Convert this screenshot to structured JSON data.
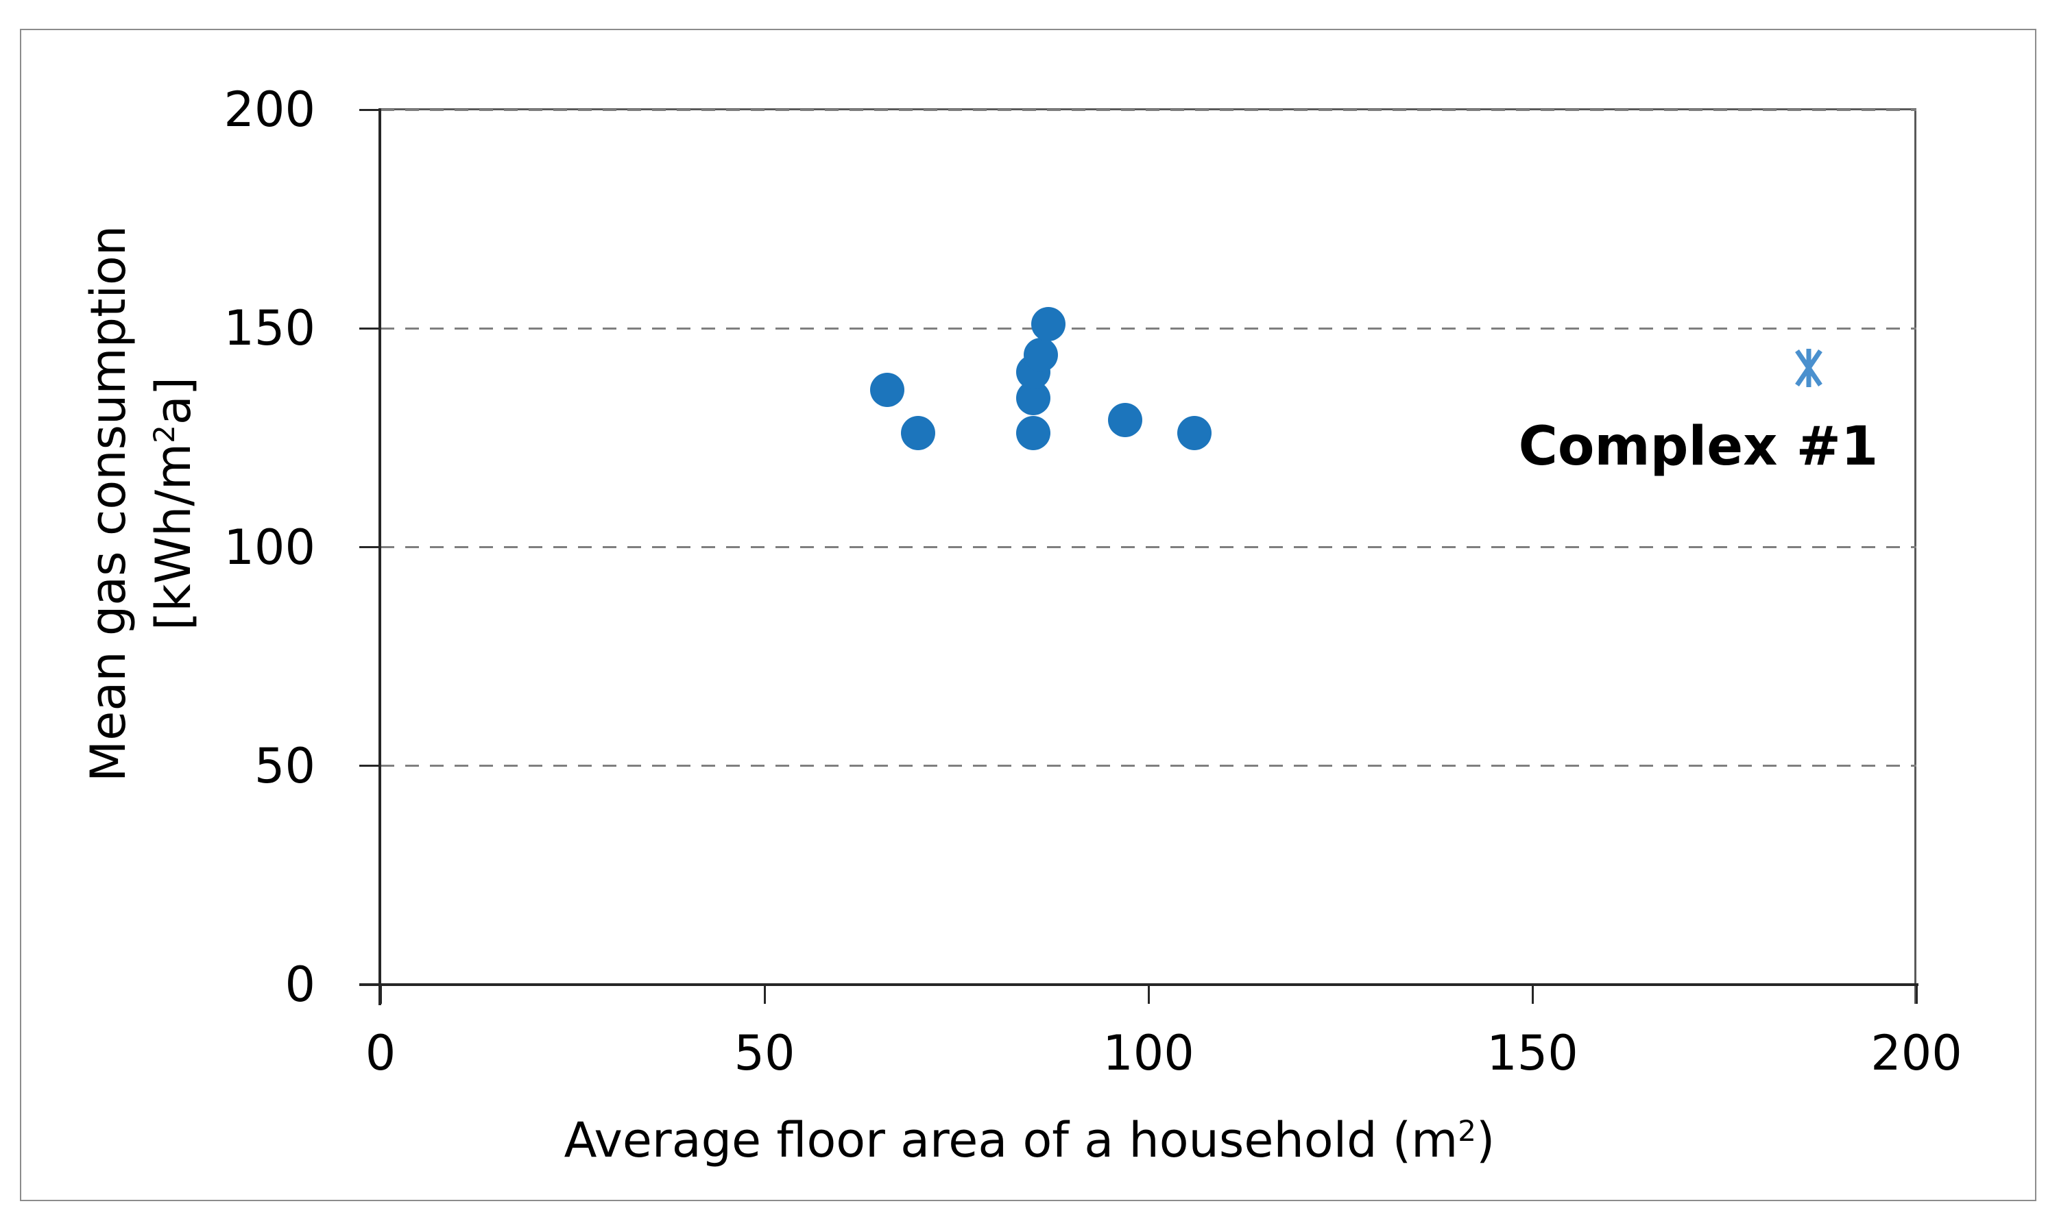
{
  "chart_data": {
    "type": "scatter",
    "title": "",
    "xlabel": "Average floor area of a household (m²)",
    "ylabel": "Mean gas consumption [kWh/m²a]",
    "xlim": [
      0,
      200
    ],
    "ylim": [
      0,
      200
    ],
    "x_ticks": [
      0,
      50,
      100,
      150,
      200
    ],
    "y_ticks": [
      0,
      50,
      100,
      150,
      200
    ],
    "grid": "horizontal dashed gridlines at y ticks",
    "legend": "none",
    "series": [
      {
        "name": "",
        "marker": "circle",
        "color": "#1c75bc",
        "points": [
          {
            "x": 66,
            "y": 136
          },
          {
            "x": 70,
            "y": 126
          },
          {
            "x": 85,
            "y": 126
          },
          {
            "x": 85,
            "y": 134
          },
          {
            "x": 85,
            "y": 140
          },
          {
            "x": 86,
            "y": 144
          },
          {
            "x": 87,
            "y": 151
          },
          {
            "x": 97,
            "y": 129
          },
          {
            "x": 106,
            "y": 126
          }
        ]
      },
      {
        "name": "Complex #1",
        "marker": "asterisk",
        "color": "#4a90ce",
        "points": [
          {
            "x": 186,
            "y": 141
          }
        ]
      }
    ],
    "annotation": {
      "text": "Complex #1",
      "x": 171.6,
      "y": 123
    }
  },
  "labels": {
    "y_title_line1": "Mean gas consumption",
    "y_title_line2_pre": "[kWh/m",
    "y_title_sup": "2",
    "y_title_line2_post": "a]",
    "x_title_pre": "Average floor area of a household (m",
    "x_title_sup": "2",
    "x_title_post": ")",
    "annotation": "Complex #1"
  },
  "axes": {
    "y_tick_labels": [
      "200",
      "150",
      "100",
      "50",
      "0"
    ],
    "x_tick_labels": [
      "0",
      "50",
      "100",
      "150",
      "200"
    ]
  },
  "colors": {
    "figure_border": "#8c8c8c",
    "plot_border": "#595959",
    "axis_line": "#262626",
    "gridline": "#7f7f7f",
    "dot": "#1c75bc",
    "asterisk": "#4a90ce",
    "text": "#000000",
    "background": "#ffffff"
  }
}
